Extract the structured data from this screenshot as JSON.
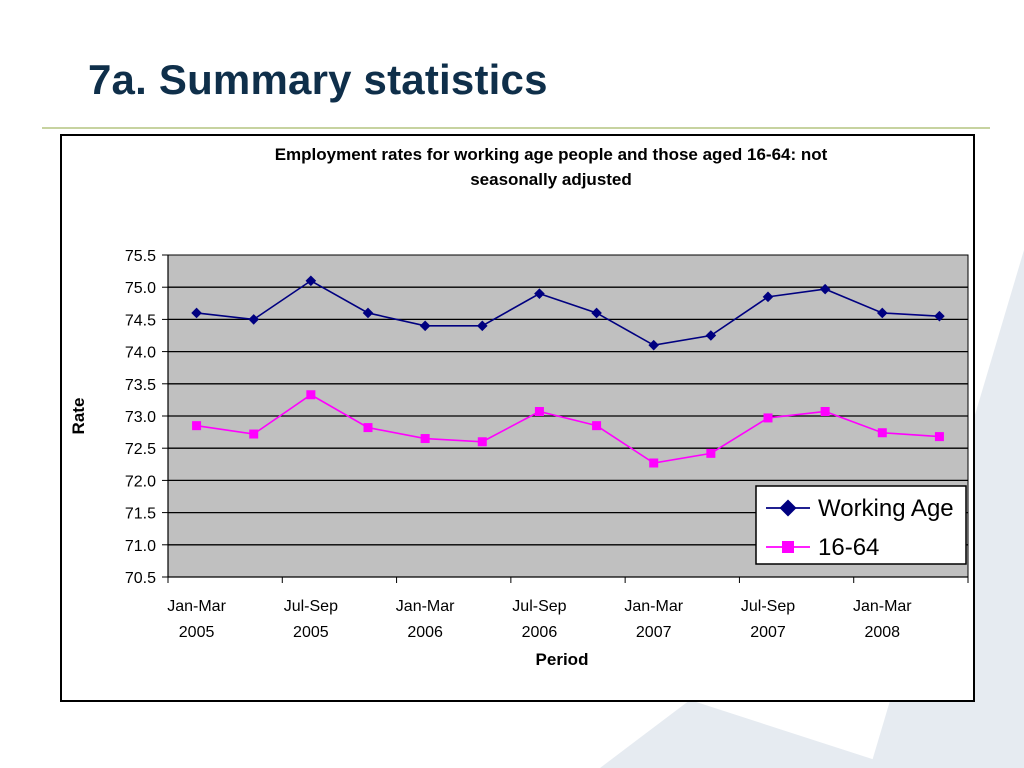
{
  "slide": {
    "title": "7a. Summary statistics"
  },
  "colors": {
    "title_text": "#0f2f4a",
    "rule": "#c7d3a0",
    "plot_bg": "#c0c0c0",
    "working_age": "#000080",
    "age_16_64": "#ff00ff",
    "background_shape": "#e6ebf1"
  },
  "chart_data": {
    "type": "line",
    "title_lines": [
      "Employment rates for working age people and those aged 16-64: not",
      "seasonally adjusted"
    ],
    "xlabel": "Period",
    "ylabel": "Rate",
    "ylim": [
      70.5,
      75.5
    ],
    "yticks": [
      "75.5",
      "75.0",
      "74.5",
      "74.0",
      "73.5",
      "73.0",
      "72.5",
      "72.0",
      "71.5",
      "71.0",
      "70.5"
    ],
    "grid": true,
    "legend_position": "bottom-right",
    "x_tick_labels": [
      {
        "line1": "Jan-Mar",
        "line2": "2005"
      },
      {
        "line1": "Jul-Sep",
        "line2": "2005"
      },
      {
        "line1": "Jan-Mar",
        "line2": "2006"
      },
      {
        "line1": "Jul-Sep",
        "line2": "2006"
      },
      {
        "line1": "Jan-Mar",
        "line2": "2007"
      },
      {
        "line1": "Jul-Sep",
        "line2": "2007"
      },
      {
        "line1": "Jan-Mar",
        "line2": "2008"
      }
    ],
    "series": [
      {
        "name": "Working Age",
        "marker": "diamond",
        "color": "#000080",
        "values": [
          74.6,
          74.5,
          75.1,
          74.6,
          74.4,
          74.4,
          74.9,
          74.6,
          74.1,
          74.25,
          74.85,
          74.97,
          74.6,
          74.55
        ]
      },
      {
        "name": "16-64",
        "marker": "square",
        "color": "#ff00ff",
        "values": [
          72.85,
          72.72,
          73.33,
          72.82,
          72.65,
          72.6,
          73.07,
          72.85,
          72.27,
          72.42,
          72.97,
          73.07,
          72.74,
          72.68
        ]
      }
    ]
  }
}
